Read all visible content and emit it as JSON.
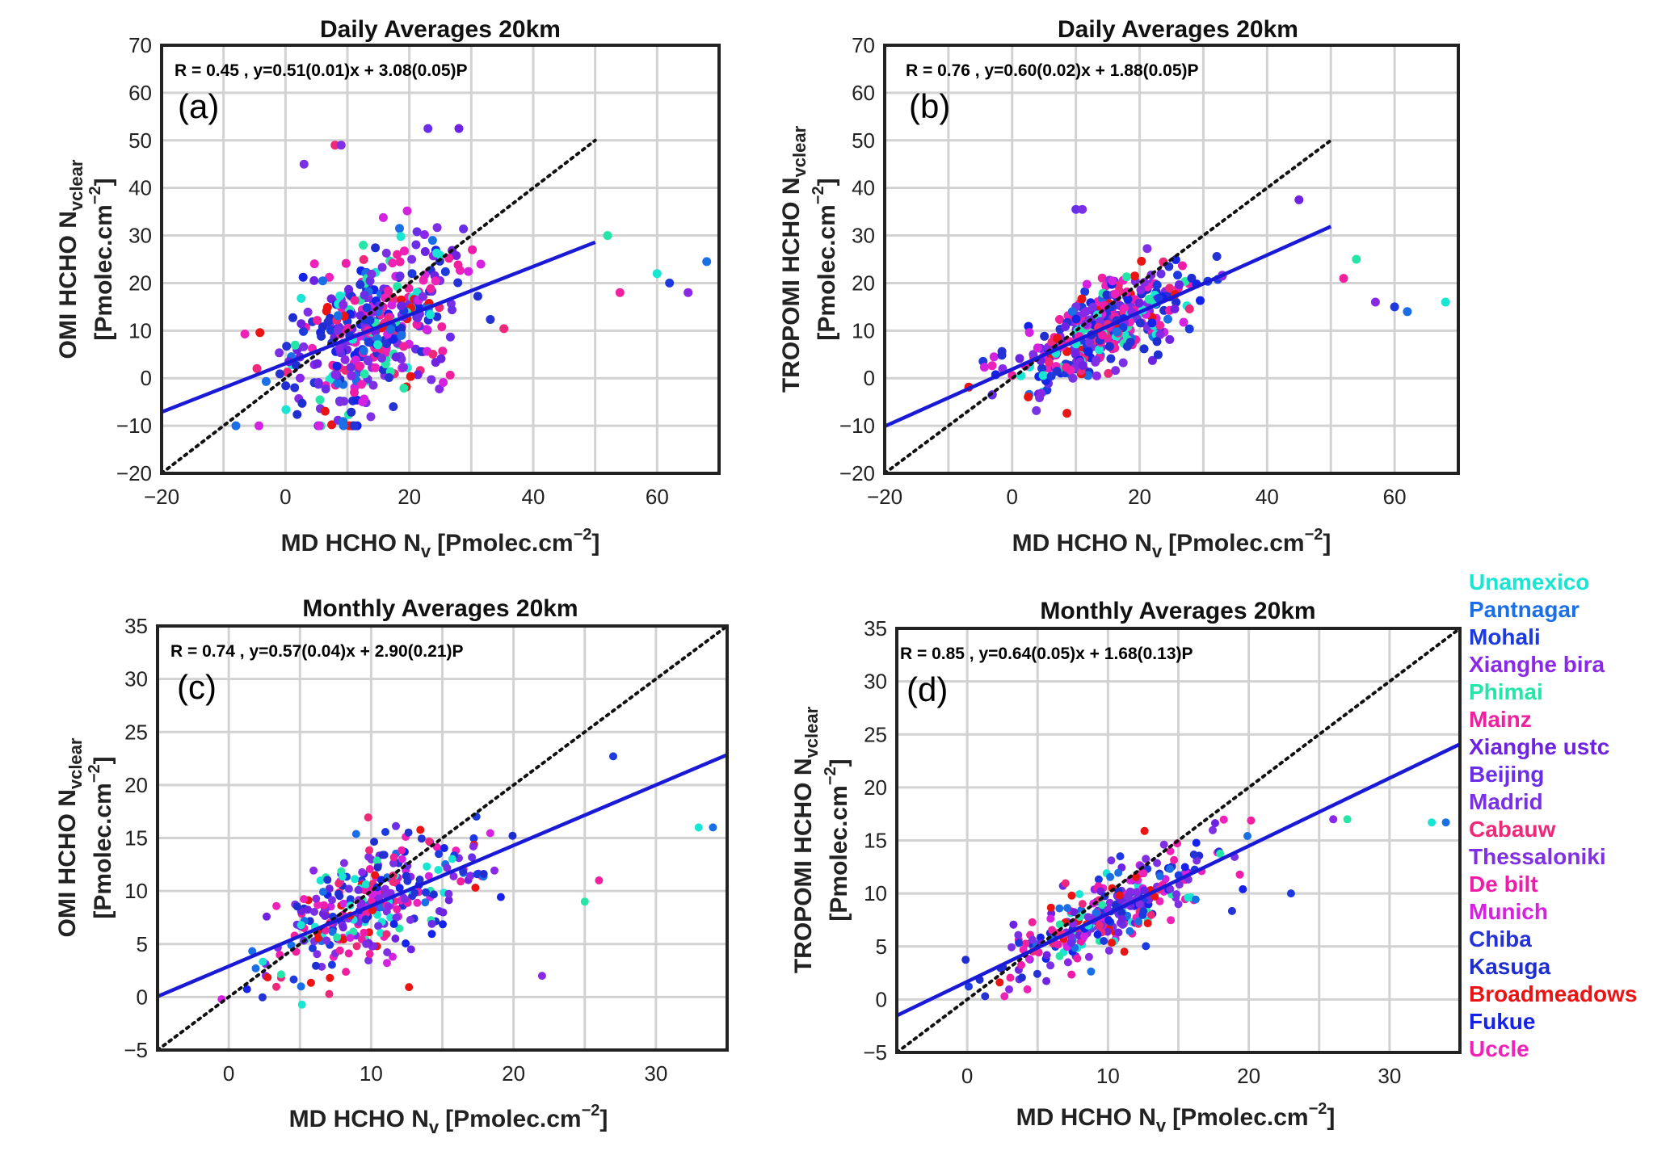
{
  "chart_data": [
    {
      "type": "scatter",
      "panel": "(a)",
      "title": "Daily Averages 20km",
      "stat_text": "R = 0.45 , y=0.51(0.01)x + 3.08(0.05)P",
      "ylabel_line1": "OMI HCHO N",
      "ylabel_sub": "vclear",
      "ylabel_line2": "[Pmolec.cm",
      "ylabel_sup": "−2",
      "ylabel_end": "]",
      "xlabel": "MD HCHO N",
      "xlabel_sub": "v",
      "xlabel_unit": "[Pmolec.cm",
      "xlabel_sup": "−2",
      "xlabel_end": "]",
      "xlim": [
        -20,
        70
      ],
      "ylim": [
        -20,
        70
      ],
      "xticks": [
        -20,
        0,
        20,
        40,
        60
      ],
      "xtick_labels": [
        "−20",
        "0",
        "20",
        "40",
        "60"
      ],
      "yticks": [
        -20,
        -10,
        0,
        10,
        20,
        30,
        40,
        50,
        60,
        70
      ],
      "ytick_labels": [
        "−20",
        "−10",
        "0",
        "10",
        "20",
        "30",
        "40",
        "50",
        "60",
        "70"
      ],
      "xgrid": [
        -10,
        10,
        30,
        50
      ],
      "fit": {
        "slope": 0.51,
        "intercept": 3.08,
        "x_range": [
          -20,
          50
        ]
      },
      "identity_range": [
        -20,
        50
      ],
      "cluster": {
        "x_center": 14,
        "x_spread": 9,
        "y_scale": 0.51,
        "y_offset": 3.08,
        "y_noise": 8,
        "n": 420,
        "x_min": -8,
        "x_max": 68,
        "y_min": -10,
        "y_max": 53
      },
      "outliers": [
        [
          60,
          22
        ],
        [
          68,
          24.5
        ],
        [
          62,
          20
        ],
        [
          65,
          18
        ],
        [
          52,
          30
        ],
        [
          54,
          18
        ],
        [
          28,
          52.5
        ],
        [
          23,
          52.5
        ],
        [
          3,
          45
        ],
        [
          8,
          49
        ],
        [
          9,
          49
        ]
      ]
    },
    {
      "type": "scatter",
      "panel": "(b)",
      "title": "Daily Averages 20km",
      "stat_text": "R = 0.76 , y=0.60(0.02)x + 1.88(0.05)P",
      "ylabel_line1": "TROPOMI HCHO N",
      "ylabel_sub": "vclear",
      "ylabel_line2": "[Pmolec.cm",
      "ylabel_sup": "−2",
      "ylabel_end": "]",
      "xlabel": "MD HCHO N",
      "xlabel_sub": "v",
      "xlabel_unit": "[Pmolec.cm",
      "xlabel_sup": "−2",
      "xlabel_end": "]",
      "xlim": [
        -20,
        70
      ],
      "ylim": [
        -20,
        70
      ],
      "xticks": [
        -20,
        0,
        20,
        40,
        60
      ],
      "xtick_labels": [
        "−20",
        "0",
        "20",
        "40",
        "60"
      ],
      "yticks": [
        -20,
        -10,
        0,
        10,
        20,
        30,
        40,
        50,
        60,
        70
      ],
      "ytick_labels": [
        "−20",
        "−10",
        "0",
        "10",
        "20",
        "30",
        "40",
        "50",
        "60",
        "70"
      ],
      "xgrid": [
        -10,
        10,
        30,
        50
      ],
      "fit": {
        "slope": 0.6,
        "intercept": 1.88,
        "x_range": [
          -20,
          50
        ]
      },
      "identity_range": [
        -20,
        50
      ],
      "cluster": {
        "x_center": 14,
        "x_spread": 9,
        "y_scale": 0.6,
        "y_offset": 1.88,
        "y_noise": 4.5,
        "n": 420,
        "x_min": -8,
        "x_max": 68,
        "y_min": -8,
        "y_max": 38
      },
      "outliers": [
        [
          68,
          16
        ],
        [
          62,
          14
        ],
        [
          60,
          15
        ],
        [
          57,
          16
        ],
        [
          54,
          25
        ],
        [
          52,
          21
        ],
        [
          45,
          37.5
        ],
        [
          10,
          35.5
        ],
        [
          11,
          35.5
        ]
      ]
    },
    {
      "type": "scatter",
      "panel": "(c)",
      "title": "Monthly Averages 20km",
      "stat_text": "R = 0.74 , y=0.57(0.04)x + 2.90(0.21)P",
      "ylabel_line1": "OMI HCHO N",
      "ylabel_sub": "vclear",
      "ylabel_line2": "[Pmolec.cm",
      "ylabel_sup": "−2",
      "ylabel_end": "]",
      "xlabel": "MD HCHO N",
      "xlabel_sub": "v",
      "xlabel_unit": "[Pmolec.cm",
      "xlabel_sup": "−2",
      "xlabel_end": "]",
      "xlim": [
        -5,
        35
      ],
      "ylim": [
        -5,
        35
      ],
      "xticks": [
        0,
        10,
        20,
        30
      ],
      "xtick_labels": [
        "0",
        "10",
        "20",
        "30"
      ],
      "yticks": [
        -5,
        0,
        5,
        10,
        15,
        20,
        25,
        30,
        35
      ],
      "ytick_labels": [
        "−5",
        "0",
        "5",
        "10",
        "15",
        "20",
        "25",
        "30",
        "35"
      ],
      "xgrid": [
        5,
        15,
        25
      ],
      "fit": {
        "slope": 0.57,
        "intercept": 2.9,
        "x_range": [
          -5,
          35
        ]
      },
      "identity_range": [
        -5,
        35
      ],
      "cluster": {
        "x_center": 10,
        "x_spread": 5,
        "y_scale": 0.57,
        "y_offset": 2.9,
        "y_noise": 2.6,
        "n": 320,
        "x_min": -0.5,
        "x_max": 28,
        "y_min": -3.5,
        "y_max": 23
      },
      "outliers": [
        [
          33,
          16
        ],
        [
          34,
          16
        ],
        [
          27,
          22.7
        ],
        [
          22,
          2
        ],
        [
          25,
          9
        ],
        [
          26,
          11
        ]
      ]
    },
    {
      "type": "scatter",
      "panel": "(d)",
      "title": "Monthly Averages 20km",
      "stat_text": "R = 0.85 , y=0.64(0.05)x + 1.68(0.13)P",
      "ylabel_line1": "TROPOMI HCHO N",
      "ylabel_sub": "vclear",
      "ylabel_line2": "[Pmolec.cm",
      "ylabel_sup": "−2",
      "ylabel_end": "]",
      "xlabel": "MD HCHO N",
      "xlabel_sub": "v",
      "xlabel_unit": "[Pmolec.cm",
      "xlabel_sup": "−2",
      "xlabel_end": "]",
      "xlim": [
        -5,
        35
      ],
      "ylim": [
        -5,
        35
      ],
      "xticks": [
        0,
        10,
        20,
        30
      ],
      "xtick_labels": [
        "0",
        "10",
        "20",
        "30"
      ],
      "yticks": [
        -5,
        0,
        5,
        10,
        15,
        20,
        25,
        30,
        35
      ],
      "ytick_labels": [
        "−5",
        "0",
        "5",
        "10",
        "15",
        "20",
        "25",
        "30",
        "35"
      ],
      "xgrid": [
        5,
        15,
        25
      ],
      "fit": {
        "slope": 0.64,
        "intercept": 1.68,
        "x_range": [
          -5,
          35
        ]
      },
      "identity_range": [
        -5,
        35
      ],
      "cluster": {
        "x_center": 10,
        "x_spread": 5,
        "y_scale": 0.64,
        "y_offset": 1.68,
        "y_noise": 1.8,
        "n": 320,
        "x_min": -0.5,
        "x_max": 28,
        "y_min": 0.3,
        "y_max": 21.5
      },
      "outliers": [
        [
          33,
          16.7
        ],
        [
          34,
          16.7
        ],
        [
          23,
          10
        ],
        [
          26,
          17
        ],
        [
          27,
          17
        ]
      ]
    }
  ],
  "legend": {
    "entries": [
      {
        "name": "Unamexico",
        "color": "#18e6d2"
      },
      {
        "name": "Pantnagar",
        "color": "#1a6ee6"
      },
      {
        "name": "Mohali",
        "color": "#1c3ae0"
      },
      {
        "name": "Xianghe bira",
        "color": "#8a28e8"
      },
      {
        "name": "Phimai",
        "color": "#25e6a8"
      },
      {
        "name": "Mainz",
        "color": "#f0209e"
      },
      {
        "name": "Xianghe ustc",
        "color": "#6e22e2"
      },
      {
        "name": "Beijing",
        "color": "#6a2ee8"
      },
      {
        "name": "Madrid",
        "color": "#7a30e4"
      },
      {
        "name": "Cabauw",
        "color": "#f0287a"
      },
      {
        "name": "Thessaloniki",
        "color": "#8030e4"
      },
      {
        "name": "De bilt",
        "color": "#ee1ca8"
      },
      {
        "name": "Munich",
        "color": "#d422e0"
      },
      {
        "name": "Chiba",
        "color": "#2432d6"
      },
      {
        "name": "Kasuga",
        "color": "#1e2ed0"
      },
      {
        "name": "Broadmeadows",
        "color": "#ea1414"
      },
      {
        "name": "Fukue",
        "color": "#1422ea"
      },
      {
        "name": "Uccle",
        "color": "#ee22b8"
      }
    ]
  }
}
